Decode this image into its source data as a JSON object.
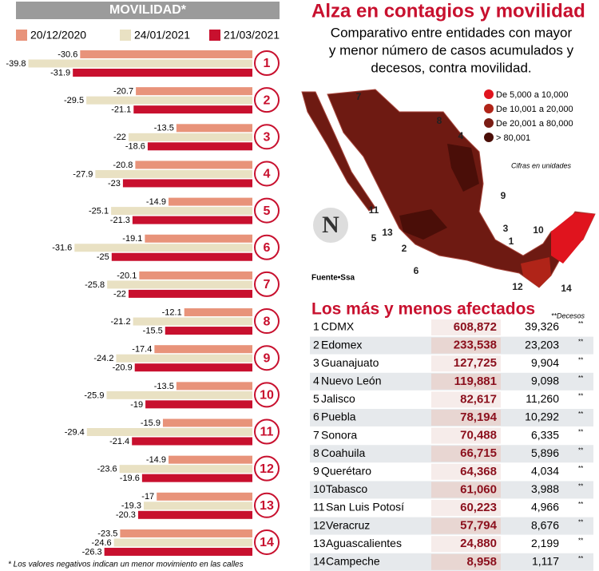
{
  "chart_data": {
    "type": "hbar",
    "title": "MOVILIDAD*",
    "footnote": "* Los valores negativos indican un menor movimiento en las calles",
    "categories": [
      "1",
      "2",
      "3",
      "4",
      "5",
      "6",
      "7",
      "8",
      "9",
      "10",
      "11",
      "12",
      "13",
      "14"
    ],
    "series": [
      {
        "name": "20/12/2020",
        "color": "#e8937a",
        "values": [
          -30.6,
          -20.7,
          -13.5,
          -20.8,
          -14.9,
          -19.1,
          -20.1,
          -12.1,
          -17.4,
          -13.5,
          -15.9,
          -14.9,
          -17,
          -23.5
        ]
      },
      {
        "name": "24/01/2021",
        "color": "#e9e1c3",
        "values": [
          -39.8,
          -29.5,
          -22,
          -27.9,
          -25.1,
          -31.6,
          -25.8,
          -21.2,
          -24.2,
          -25.9,
          -29.4,
          -23.6,
          -19.3,
          -24.6
        ]
      },
      {
        "name": "21/03/2021",
        "color": "#c8102e",
        "values": [
          -31.9,
          -21.1,
          -18.6,
          -23,
          -21.3,
          -25,
          -22,
          -15.5,
          -20.9,
          -19,
          -21.4,
          -19.6,
          -20.3,
          -26.3
        ]
      }
    ],
    "xlim": [
      -42,
      0
    ]
  },
  "header": {
    "title": "Alza en contagios y movilidad",
    "subtitle": [
      "Comparativo entre entidades con mayor",
      "y menor número de casos acumulados y",
      "decesos, contra movilidad."
    ]
  },
  "map": {
    "logo": "N",
    "legend": [
      {
        "label": "De 5,000 a 10,000",
        "color": "#e0141e"
      },
      {
        "label": "De 10,001 a 20,000",
        "color": "#b02418"
      },
      {
        "label": "De 20,001 a 80,000",
        "color": "#7a1c14"
      },
      {
        "label": "> 80,001",
        "color": "#4a0e08"
      }
    ],
    "note": "Cifras en unidades",
    "source": "Fuente•Ssa",
    "labels": [
      "7",
      "8",
      "4",
      "9",
      "11",
      "13",
      "3",
      "5",
      "1",
      "2",
      "6",
      "10",
      "12",
      "14"
    ]
  },
  "table": {
    "title": "Los más y menos afectados",
    "deaths_header": "**Decesos",
    "rows": [
      [
        "1",
        "CDMX",
        "608,872",
        "39,326",
        "**"
      ],
      [
        "2",
        "Edomex",
        "233,538",
        "23,203",
        "**"
      ],
      [
        "3",
        "Guanajuato",
        "127,725",
        "9,904",
        "**"
      ],
      [
        "4",
        "Nuevo León",
        "119,881",
        "9,098",
        "**"
      ],
      [
        "5",
        "Jalisco",
        "82,617",
        "11,260",
        "**"
      ],
      [
        "6",
        "Puebla",
        "78,194",
        "10,292",
        "**"
      ],
      [
        "7",
        "Sonora",
        "70,488",
        "6,335",
        "**"
      ],
      [
        "8",
        "Coahuila",
        "66,715",
        "5,896",
        "**"
      ],
      [
        "9",
        "Querétaro",
        "64,368",
        "4,034",
        "**"
      ],
      [
        "10",
        "Tabasco",
        "61,060",
        "3,988",
        "**"
      ],
      [
        "11",
        "San Luis Potosí",
        "60,223",
        "4,966",
        "**"
      ],
      [
        "12",
        "Veracruz",
        "57,794",
        "8,676",
        "**"
      ],
      [
        "13",
        "Aguascalientes",
        "24,880",
        "2,199",
        "**"
      ],
      [
        "14",
        "Campeche",
        "8,958",
        "1,117",
        "**"
      ]
    ]
  }
}
